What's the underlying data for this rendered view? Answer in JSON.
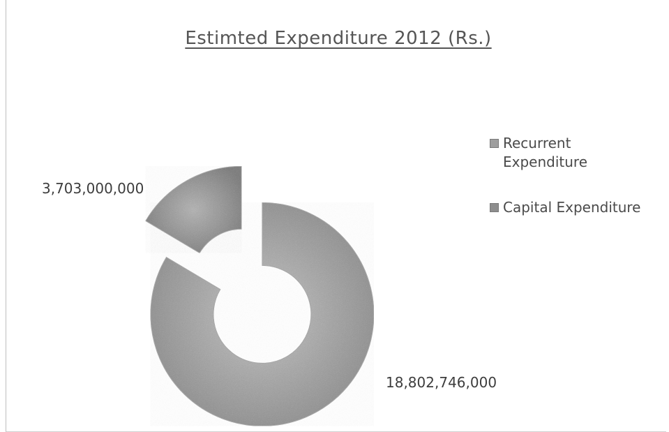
{
  "chart_data": {
    "type": "pie",
    "variant": "exploded-doughnut",
    "title": "Estimted Expenditure 2012 (Rs.)",
    "categories": [
      "Recurrent Expenditure",
      "Capital Expenditure"
    ],
    "values": [
      18802746000,
      3703000000
    ],
    "data_labels": [
      "18,802,746,000",
      "3,703,000,000"
    ],
    "legend_placement": "right",
    "colors": [
      "#9e9e9e",
      "#8e8e8e"
    ]
  }
}
